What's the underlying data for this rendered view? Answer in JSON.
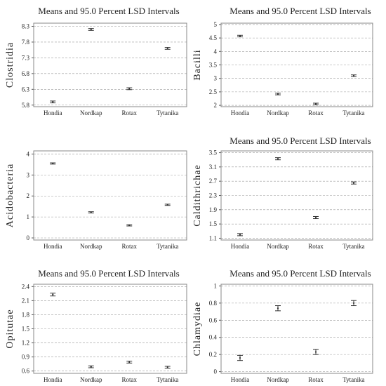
{
  "chart_data": [
    {
      "type": "scatter",
      "title": "Means and 95.0 Percent LSD Intervals",
      "ylabel": "Clostridia",
      "xlabel": "",
      "categories": [
        "Hondia",
        "Nordkap",
        "Rotax",
        "Tytanika"
      ],
      "series": [
        {
          "means": [
            5.9,
            8.2,
            6.32,
            7.6
          ],
          "lower": [
            5.87,
            8.17,
            6.29,
            7.57
          ],
          "upper": [
            5.93,
            8.23,
            6.35,
            7.63
          ]
        }
      ],
      "ylim": [
        5.75,
        8.4
      ],
      "yticks": [
        "5.8",
        "6.3",
        "6.8",
        "7.3",
        "7.8",
        "8.3"
      ],
      "grid": true
    },
    {
      "type": "scatter",
      "title": "Means and 95.0 Percent LSD Intervals",
      "ylabel": "Bacilli",
      "xlabel": "",
      "categories": [
        "Hondia",
        "Nordkap",
        "Rotax",
        "Tytanika"
      ],
      "series": [
        {
          "means": [
            4.57,
            2.42,
            2.05,
            3.1
          ],
          "lower": [
            4.54,
            2.39,
            2.02,
            3.07
          ],
          "upper": [
            4.6,
            2.45,
            2.08,
            3.13
          ]
        }
      ],
      "ylim": [
        1.95,
        5.05
      ],
      "yticks": [
        "2",
        "2.5",
        "3",
        "3.5",
        "4",
        "4.5",
        "5"
      ],
      "grid": true
    },
    {
      "type": "scatter",
      "title": "",
      "ylabel": "Acidobacteria",
      "xlabel": "",
      "categories": [
        "Hondia",
        "Nordkap",
        "Rotax",
        "Tytanika"
      ],
      "series": [
        {
          "means": [
            3.55,
            1.22,
            0.6,
            1.58
          ],
          "lower": [
            3.52,
            1.19,
            0.57,
            1.55
          ],
          "upper": [
            3.58,
            1.25,
            0.63,
            1.61
          ]
        }
      ],
      "ylim": [
        -0.1,
        4.15
      ],
      "yticks": [
        "0",
        "1",
        "2",
        "3",
        "4"
      ],
      "grid": true
    },
    {
      "type": "scatter",
      "title": "Means and 95.0 Percent LSD Intervals",
      "ylabel": "Caldithrichae",
      "xlabel": "",
      "categories": [
        "Hondia",
        "Nordkap",
        "Rotax",
        "Tytanika"
      ],
      "series": [
        {
          "means": [
            1.2,
            3.33,
            1.68,
            2.65
          ],
          "lower": [
            1.17,
            3.3,
            1.65,
            2.62
          ],
          "upper": [
            1.23,
            3.36,
            1.71,
            2.68
          ]
        }
      ],
      "ylim": [
        1.05,
        3.55
      ],
      "yticks": [
        "1.1",
        "1.5",
        "1.9",
        "2.3",
        "2.7",
        "3.1",
        "3.5"
      ],
      "grid": true
    },
    {
      "type": "scatter",
      "title": "Means and 95.0 Percent LSD Intervals",
      "ylabel": "Opitutae",
      "xlabel": "",
      "categories": [
        "Hondia",
        "Nordkap",
        "Rotax",
        "Tytanika"
      ],
      "series": [
        {
          "means": [
            2.23,
            0.69,
            0.79,
            0.68
          ],
          "lower": [
            2.2,
            0.67,
            0.77,
            0.66
          ],
          "upper": [
            2.26,
            0.71,
            0.81,
            0.7
          ]
        }
      ],
      "ylim": [
        0.55,
        2.45
      ],
      "yticks": [
        "0.6",
        "0.9",
        "1.2",
        "1.5",
        "1.8",
        "2.1",
        "2.4"
      ],
      "grid": true
    },
    {
      "type": "scatter",
      "title": "Means and 95.0 Percent LSD Intervals",
      "ylabel": "Chlamydiae",
      "xlabel": "",
      "categories": [
        "Hondia",
        "Nordkap",
        "Rotax",
        "Tytanika"
      ],
      "series": [
        {
          "means": [
            0.16,
            0.74,
            0.23,
            0.8
          ],
          "lower": [
            0.13,
            0.71,
            0.2,
            0.77
          ],
          "upper": [
            0.19,
            0.77,
            0.26,
            0.83
          ]
        }
      ],
      "ylim": [
        -0.02,
        1.02
      ],
      "yticks": [
        "0",
        "0.2",
        "0.4",
        "0.6",
        "0.8",
        "1"
      ],
      "grid": true
    }
  ]
}
